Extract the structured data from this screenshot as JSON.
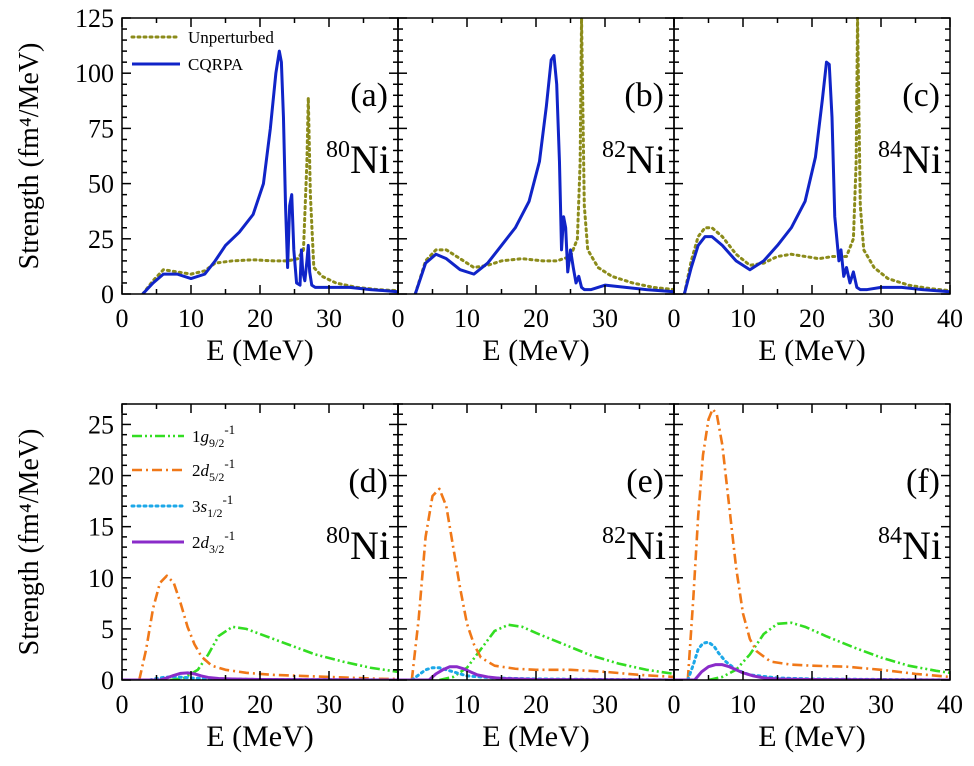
{
  "figure": {
    "colors": {
      "unperturbed": "#8B8B1A",
      "cqrpa": "#1024C8",
      "g92": "#33DD22",
      "d52": "#F07818",
      "s12": "#1CA8E8",
      "d32": "#8A2BC9",
      "axis": "#000000"
    }
  },
  "chart_data": [
    {
      "id": "a",
      "type": "line",
      "tag": "(a)",
      "nucleus": {
        "mass": "80",
        "symbol": "Ni"
      },
      "xlabel": "E (MeV)",
      "ylabel": "Strength (fm⁴/MeV)",
      "xlim": [
        0,
        40
      ],
      "ylim": [
        0,
        125
      ],
      "xticks": [
        0,
        10,
        20,
        30
      ],
      "yticks": [
        0,
        25,
        50,
        75,
        100,
        125
      ],
      "legend": [
        "Unperturbed",
        "CQRPA"
      ],
      "series": [
        {
          "name": "Unperturbed",
          "style": "dotted",
          "color": "#8B8B1A",
          "x": [
            3.0,
            4.5,
            6.0,
            8.0,
            10.0,
            12.0,
            13.5,
            16.0,
            19.0,
            22.0,
            24.0,
            25.5,
            26.3,
            26.8,
            27.0,
            27.3,
            27.8,
            29.0,
            31.0,
            34.0,
            37.0,
            40.0
          ],
          "y": [
            0.0,
            6.0,
            11.0,
            10.0,
            9.0,
            10.5,
            14.0,
            15.0,
            15.5,
            15.0,
            15.0,
            16.0,
            20.0,
            60.0,
            89.0,
            45.0,
            12.0,
            8.0,
            5.0,
            3.0,
            2.0,
            1.5
          ]
        },
        {
          "name": "CQRPA",
          "style": "solid",
          "color": "#1024C8",
          "x": [
            3.0,
            4.5,
            6.0,
            8.0,
            10.0,
            12.0,
            13.5,
            15.0,
            17.0,
            19.0,
            20.5,
            21.5,
            22.3,
            22.8,
            23.1,
            23.4,
            23.7,
            24.0,
            24.3,
            24.6,
            24.9,
            25.3,
            25.8,
            26.0,
            26.2,
            26.5,
            26.8,
            27.0,
            27.2,
            27.5,
            28.0,
            30.0,
            33.0,
            36.0,
            40.0
          ],
          "y": [
            0.0,
            5.0,
            9.0,
            9.0,
            7.0,
            9.0,
            15.0,
            22.0,
            28.0,
            36.0,
            50.0,
            75.0,
            100.0,
            110.0,
            105.0,
            80.0,
            40.0,
            12.0,
            40.0,
            45.0,
            20.0,
            5.0,
            4.0,
            20.0,
            10.0,
            6.0,
            15.0,
            22.0,
            10.0,
            4.0,
            3.0,
            3.0,
            3.0,
            2.0,
            1.0
          ]
        }
      ]
    },
    {
      "id": "b",
      "type": "line",
      "tag": "(b)",
      "nucleus": {
        "mass": "82",
        "symbol": "Ni"
      },
      "xlabel": "E (MeV)",
      "ylabel": "",
      "xlim": [
        0,
        40
      ],
      "ylim": [
        0,
        125
      ],
      "xticks": [
        0,
        10,
        20,
        30
      ],
      "yticks": [
        0,
        25,
        50,
        75,
        100,
        125
      ],
      "series": [
        {
          "name": "Unperturbed",
          "style": "dotted",
          "color": "#8B8B1A",
          "x": [
            2.5,
            4.0,
            5.5,
            7.0,
            9.0,
            11.0,
            13.0,
            15.0,
            18.0,
            21.0,
            23.0,
            25.0,
            26.0,
            26.4,
            26.6,
            27.0,
            27.5,
            29.0,
            31.0,
            34.0,
            37.0,
            40.0
          ],
          "y": [
            0.0,
            15.0,
            20.0,
            20.0,
            16.0,
            12.0,
            13.0,
            15.0,
            16.0,
            15.0,
            15.0,
            17.0,
            25.0,
            60.0,
            125.0,
            40.0,
            20.0,
            12.0,
            8.0,
            5.0,
            3.0,
            2.0
          ]
        },
        {
          "name": "CQRPA",
          "style": "solid",
          "color": "#1024C8",
          "x": [
            2.5,
            4.0,
            5.5,
            7.0,
            9.0,
            11.0,
            13.0,
            15.0,
            17.0,
            19.0,
            20.5,
            21.5,
            22.2,
            22.6,
            23.0,
            23.4,
            23.7,
            24.0,
            24.3,
            24.6,
            25.0,
            25.4,
            25.8,
            26.2,
            26.6,
            27.0,
            28.0,
            30.0,
            33.0,
            36.0,
            40.0
          ],
          "y": [
            0.0,
            14.0,
            18.0,
            16.0,
            11.0,
            9.0,
            14.0,
            22.0,
            30.0,
            42.0,
            60.0,
            85.0,
            106.0,
            108.0,
            95.0,
            60.0,
            20.0,
            35.0,
            30.0,
            10.0,
            20.0,
            12.0,
            5.0,
            8.0,
            3.0,
            2.0,
            2.0,
            4.0,
            3.0,
            2.0,
            1.0
          ]
        }
      ]
    },
    {
      "id": "c",
      "type": "line",
      "tag": "(c)",
      "nucleus": {
        "mass": "84",
        "symbol": "Ni"
      },
      "xlabel": "E (MeV)",
      "ylabel": "",
      "xlim": [
        0,
        40
      ],
      "ylim": [
        0,
        125
      ],
      "xticks": [
        0,
        10,
        20,
        30,
        40
      ],
      "yticks": [
        0,
        25,
        50,
        75,
        100,
        125
      ],
      "series": [
        {
          "name": "Unperturbed",
          "style": "dotted",
          "color": "#8B8B1A",
          "x": [
            1.5,
            2.5,
            3.5,
            4.5,
            5.5,
            7.0,
            9.0,
            11.0,
            13.0,
            15.0,
            17.0,
            19.0,
            21.0,
            23.0,
            25.0,
            26.0,
            26.4,
            26.6,
            27.0,
            27.5,
            29.0,
            31.0,
            34.0,
            37.0,
            40.0
          ],
          "y": [
            0.0,
            15.0,
            26.0,
            30.0,
            30.0,
            26.0,
            18.0,
            13.0,
            14.0,
            17.0,
            18.0,
            17.0,
            16.0,
            17.0,
            17.0,
            25.0,
            60.0,
            125.0,
            40.0,
            20.0,
            12.0,
            7.0,
            4.0,
            2.5,
            1.5
          ]
        },
        {
          "name": "CQRPA",
          "style": "solid",
          "color": "#1024C8",
          "x": [
            1.5,
            2.5,
            3.5,
            4.5,
            5.5,
            7.0,
            9.0,
            11.0,
            13.0,
            15.0,
            17.0,
            19.0,
            20.5,
            21.5,
            22.1,
            22.5,
            22.9,
            23.3,
            23.6,
            23.9,
            24.2,
            24.6,
            25.0,
            25.5,
            26.0,
            26.5,
            27.0,
            28.0,
            30.0,
            33.0,
            36.0,
            40.0
          ],
          "y": [
            0.0,
            12.0,
            22.0,
            26.0,
            26.0,
            22.0,
            15.0,
            11.0,
            15.0,
            22.0,
            30.0,
            42.0,
            62.0,
            88.0,
            105.0,
            104.0,
            80.0,
            35.0,
            25.0,
            15.0,
            20.0,
            8.0,
            12.0,
            5.0,
            10.0,
            3.0,
            2.0,
            2.0,
            3.0,
            3.0,
            2.0,
            1.0
          ]
        }
      ]
    },
    {
      "id": "d",
      "type": "line",
      "tag": "(d)",
      "nucleus": {
        "mass": "80",
        "symbol": "Ni"
      },
      "xlabel": "E (MeV)",
      "ylabel": "Strength (fm⁴/MeV)",
      "xlim": [
        0,
        40
      ],
      "ylim": [
        0,
        27
      ],
      "xticks": [
        0,
        10,
        20,
        30
      ],
      "yticks": [
        0,
        5,
        10,
        15,
        20,
        25
      ],
      "legend": [
        {
          "orbital": "1",
          "l": "g",
          "j": "9/2",
          "exp": "-1"
        },
        {
          "orbital": "2",
          "l": "d",
          "j": "5/2",
          "exp": "-1"
        },
        {
          "orbital": "3",
          "l": "s",
          "j": "1/2",
          "exp": "-1"
        },
        {
          "orbital": "2",
          "l": "d",
          "j": "3/2",
          "exp": "-1"
        }
      ],
      "series": [
        {
          "name": "1g9/2-1",
          "style": "dashdotdot",
          "color": "#33DD22",
          "x": [
            7.0,
            9.0,
            11.0,
            12.5,
            14.0,
            16.0,
            18.0,
            20.0,
            24.0,
            28.0,
            32.0,
            36.0,
            40.0
          ],
          "y": [
            0.0,
            0.2,
            1.0,
            2.5,
            4.3,
            5.2,
            5.0,
            4.5,
            3.5,
            2.5,
            1.8,
            1.2,
            0.8
          ]
        },
        {
          "name": "2d5/2-1",
          "style": "dashdot",
          "color": "#F07818",
          "x": [
            2.5,
            3.5,
            4.5,
            5.5,
            6.5,
            7.5,
            8.5,
            9.5,
            10.5,
            11.5,
            13.0,
            15.0,
            18.0,
            22.0,
            26.0,
            30.0,
            34.0,
            38.0,
            40.0
          ],
          "y": [
            0.0,
            3.0,
            7.0,
            9.5,
            10.2,
            9.5,
            7.5,
            5.2,
            3.5,
            2.3,
            1.4,
            1.0,
            0.7,
            0.5,
            0.4,
            0.3,
            0.2,
            0.1,
            0.1
          ]
        },
        {
          "name": "3s1/2-1",
          "style": "dotted",
          "color": "#1CA8E8",
          "x": [
            4.0,
            5.0,
            6.0,
            7.0,
            8.0,
            9.0,
            10.0,
            11.5,
            14.0,
            20.0,
            30.0,
            40.0
          ],
          "y": [
            0.0,
            0.15,
            0.25,
            0.3,
            0.3,
            0.25,
            0.2,
            0.15,
            0.1,
            0.05,
            0.02,
            0.0
          ]
        },
        {
          "name": "2d3/2-1",
          "style": "solid",
          "color": "#8A2BC9",
          "x": [
            0.0,
            5.5,
            6.5,
            7.5,
            8.5,
            9.5,
            10.5,
            11.5,
            12.5,
            14.0,
            16.0,
            20.0,
            30.0,
            40.0
          ],
          "y": [
            0.0,
            0.0,
            0.2,
            0.45,
            0.65,
            0.7,
            0.6,
            0.4,
            0.25,
            0.15,
            0.1,
            0.05,
            0.02,
            0.0
          ]
        }
      ]
    },
    {
      "id": "e",
      "type": "line",
      "tag": "(e)",
      "nucleus": {
        "mass": "82",
        "symbol": "Ni"
      },
      "xlabel": "E (MeV)",
      "ylabel": "",
      "xlim": [
        0,
        40
      ],
      "ylim": [
        0,
        27
      ],
      "xticks": [
        0,
        10,
        20,
        30
      ],
      "yticks": [
        0,
        5,
        10,
        15,
        20,
        25
      ],
      "series": [
        {
          "name": "1g9/2-1",
          "style": "dashdotdot",
          "color": "#33DD22",
          "x": [
            6.0,
            8.0,
            10.0,
            12.0,
            14.0,
            16.0,
            18.0,
            20.0,
            24.0,
            28.0,
            32.0,
            36.0,
            40.0
          ],
          "y": [
            0.0,
            0.3,
            1.2,
            3.0,
            4.8,
            5.4,
            5.2,
            4.6,
            3.5,
            2.4,
            1.6,
            1.0,
            0.6
          ]
        },
        {
          "name": "2d5/2-1",
          "style": "dashdot",
          "color": "#F07818",
          "x": [
            2.0,
            3.0,
            4.0,
            5.0,
            6.0,
            7.0,
            8.0,
            9.0,
            10.0,
            11.0,
            12.0,
            14.0,
            17.0,
            20.0,
            25.0,
            30.0,
            35.0,
            40.0
          ],
          "y": [
            0.0,
            6.0,
            14.0,
            18.0,
            18.7,
            17.0,
            13.0,
            9.0,
            5.5,
            3.5,
            2.2,
            1.4,
            1.1,
            1.0,
            1.0,
            0.8,
            0.5,
            0.3
          ]
        },
        {
          "name": "3s1/2-1",
          "style": "dotted",
          "color": "#1CA8E8",
          "x": [
            2.0,
            3.0,
            4.0,
            5.0,
            6.0,
            7.0,
            8.0,
            10.0,
            14.0,
            20.0,
            30.0,
            40.0
          ],
          "y": [
            0.0,
            0.5,
            1.0,
            1.2,
            1.2,
            1.0,
            0.8,
            0.4,
            0.2,
            0.1,
            0.05,
            0.0
          ]
        },
        {
          "name": "2d3/2-1",
          "style": "solid",
          "color": "#8A2BC9",
          "x": [
            0.0,
            4.5,
            5.5,
            6.5,
            7.5,
            8.5,
            9.5,
            10.5,
            11.5,
            13.0,
            15.0,
            20.0,
            30.0,
            40.0
          ],
          "y": [
            0.0,
            0.0,
            0.6,
            1.0,
            1.3,
            1.3,
            1.1,
            0.8,
            0.5,
            0.3,
            0.15,
            0.05,
            0.02,
            0.0
          ]
        }
      ]
    },
    {
      "id": "f",
      "type": "line",
      "tag": "(f)",
      "nucleus": {
        "mass": "84",
        "symbol": "Ni"
      },
      "xlabel": "E (MeV)",
      "ylabel": "",
      "xlim": [
        0,
        40
      ],
      "ylim": [
        0,
        27
      ],
      "xticks": [
        0,
        10,
        20,
        30,
        40
      ],
      "yticks": [
        0,
        5,
        10,
        15,
        20,
        25
      ],
      "series": [
        {
          "name": "1g9/2-1",
          "style": "dashdotdot",
          "color": "#33DD22",
          "x": [
            5.0,
            7.0,
            9.0,
            11.0,
            13.0,
            15.0,
            17.0,
            19.0,
            22.0,
            26.0,
            30.0,
            34.0,
            38.0,
            40.0
          ],
          "y": [
            0.0,
            0.3,
            1.0,
            2.5,
            4.5,
            5.5,
            5.6,
            5.2,
            4.3,
            3.2,
            2.2,
            1.4,
            0.9,
            0.7
          ]
        },
        {
          "name": "2d5/2-1",
          "style": "dashdot",
          "color": "#F07818",
          "x": [
            2.0,
            2.8,
            3.5,
            4.2,
            5.0,
            5.6,
            6.2,
            7.0,
            8.0,
            9.0,
            10.0,
            11.0,
            12.0,
            14.0,
            17.0,
            20.0,
            25.0,
            30.0,
            35.0,
            40.0
          ],
          "y": [
            0.0,
            8.0,
            16.0,
            22.0,
            25.5,
            26.5,
            26.0,
            23.0,
            17.0,
            11.0,
            6.5,
            4.0,
            2.8,
            1.8,
            1.5,
            1.4,
            1.3,
            1.0,
            0.6,
            0.3
          ]
        },
        {
          "name": "3s1/2-1",
          "style": "dotted",
          "color": "#1CA8E8",
          "x": [
            2.0,
            2.8,
            3.5,
            4.2,
            5.0,
            5.8,
            6.5,
            7.5,
            9.0,
            11.0,
            15.0,
            20.0,
            30.0,
            40.0
          ],
          "y": [
            0.0,
            1.5,
            3.0,
            3.6,
            3.7,
            3.3,
            2.6,
            1.8,
            1.0,
            0.5,
            0.2,
            0.1,
            0.05,
            0.0
          ]
        },
        {
          "name": "2d3/2-1",
          "style": "solid",
          "color": "#8A2BC9",
          "x": [
            0.0,
            3.0,
            4.0,
            5.0,
            6.0,
            7.0,
            8.0,
            9.0,
            10.0,
            11.5,
            13.0,
            15.0,
            20.0,
            30.0,
            40.0
          ],
          "y": [
            0.0,
            0.0,
            0.8,
            1.3,
            1.5,
            1.5,
            1.3,
            1.0,
            0.7,
            0.4,
            0.2,
            0.1,
            0.05,
            0.02,
            0.0
          ]
        }
      ]
    }
  ]
}
